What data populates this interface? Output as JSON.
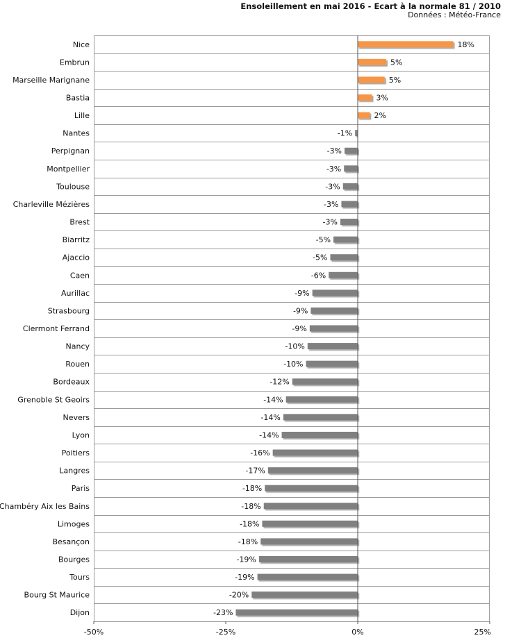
{
  "chart_data": {
    "type": "bar",
    "orientation": "horizontal",
    "title": "Ensoleillement en mai 2016 - Ecart à la normale 81 / 2010",
    "subtitle": "Données : Météo-France",
    "xlim": [
      -50,
      25
    ],
    "x_ticks": [
      -50,
      -25,
      0,
      25
    ],
    "x_tick_labels": [
      "-50%",
      "-25%",
      "0%",
      "25%"
    ],
    "grid": true,
    "positive_color": "#f79646",
    "negative_color": "#808080",
    "categories": [
      "Nice",
      "Embrun",
      "Marseille Marignane",
      "Bastia",
      "Lille",
      "Nantes",
      "Perpignan",
      "Montpellier",
      "Toulouse",
      "Charleville Mézières",
      "Brest",
      "Biarritz",
      "Ajaccio",
      "Caen",
      "Aurillac",
      "Strasbourg",
      "Clermont Ferrand",
      "Nancy",
      "Rouen",
      "Bordeaux",
      "Grenoble St Geoirs",
      "Nevers",
      "Lyon",
      "Poitiers",
      "Langres",
      "Paris",
      "Chambéry Aix les Bains",
      "Limoges",
      "Besançon",
      "Bourges",
      "Tours",
      "Bourg St Maurice",
      "Dijon"
    ],
    "values": [
      18.1,
      5.4,
      5.1,
      2.7,
      2.3,
      -0.5,
      -2.5,
      -2.6,
      -2.8,
      -3.1,
      -3.3,
      -4.6,
      -5.2,
      -5.5,
      -8.6,
      -8.9,
      -9.1,
      -9.5,
      -9.8,
      -12.4,
      -13.6,
      -14.1,
      -14.4,
      -16.1,
      -17.0,
      -17.6,
      -17.8,
      -18.1,
      -18.4,
      -18.7,
      -19.0,
      -20.1,
      -23.1
    ],
    "value_labels": [
      "18%",
      "5%",
      "5%",
      "3%",
      "2%",
      "-1%",
      "-3%",
      "-3%",
      "-3%",
      "-3%",
      "-3%",
      "-5%",
      "-5%",
      "-6%",
      "-9%",
      "-9%",
      "-9%",
      "-10%",
      "-10%",
      "-12%",
      "-14%",
      "-14%",
      "-14%",
      "-16%",
      "-17%",
      "-18%",
      "-18%",
      "-18%",
      "-18%",
      "-19%",
      "-19%",
      "-20%",
      "-23%"
    ]
  }
}
